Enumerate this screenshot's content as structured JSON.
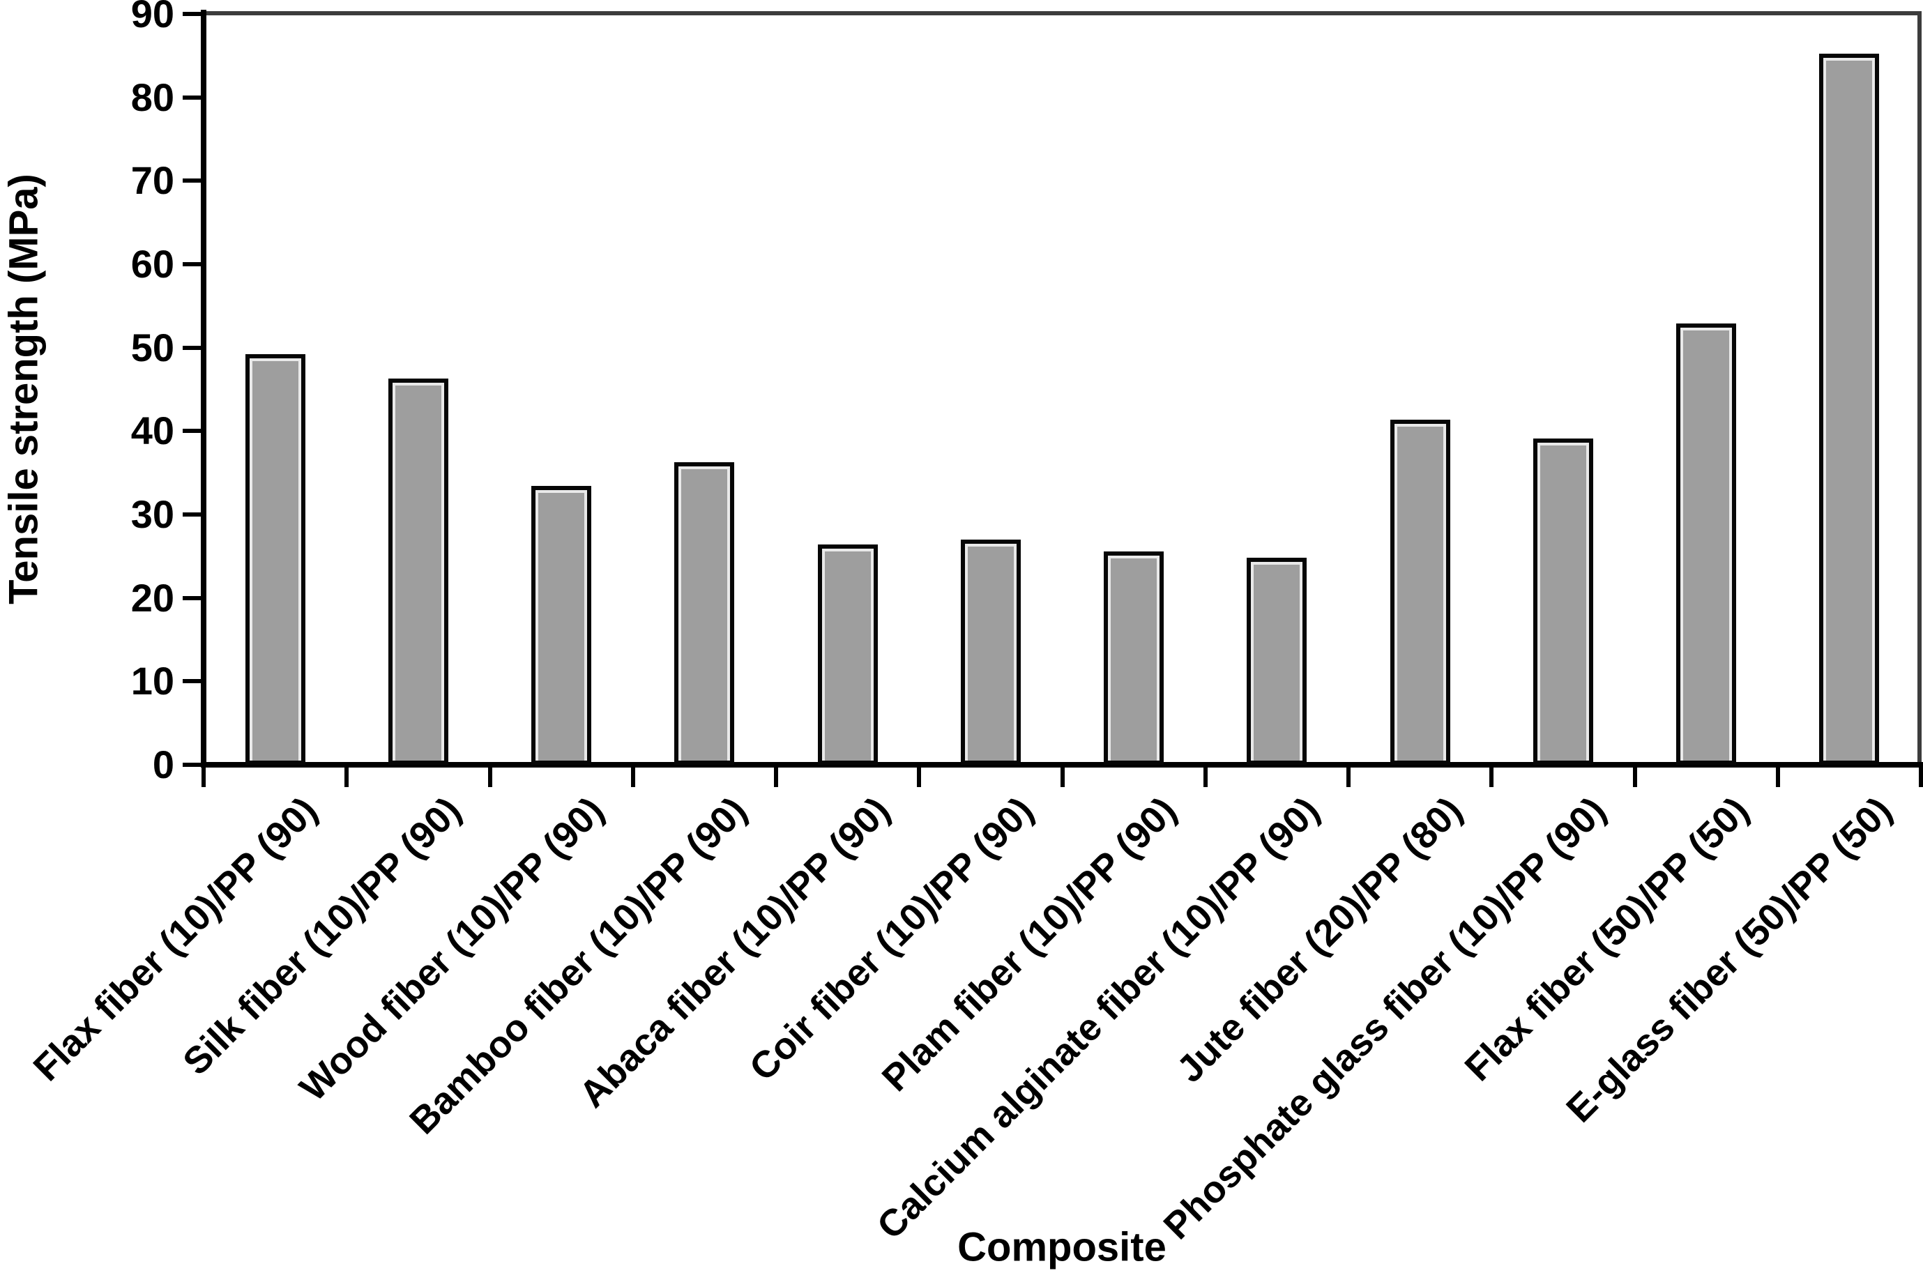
{
  "chart_data": {
    "type": "bar",
    "title": "",
    "xlabel": "Composite",
    "ylabel": "Tensile strength (MPa)",
    "ylim": [
      0,
      90
    ],
    "yticks": [
      0,
      10,
      20,
      30,
      40,
      50,
      60,
      70,
      80,
      90
    ],
    "grid": false,
    "legend": null,
    "categories": [
      "Flax fiber (10)/PP (90)",
      "Silk fiber (10)/PP (90)",
      "Wood fiber (10)/PP (90)",
      "Bamboo fiber (10)/PP (90)",
      "Abaca fiber (10)/PP (90)",
      "Coir fiber (10)/PP (90)",
      "Plam fiber (10)/PP (90)",
      "Calcium alginate fiber (10)/PP (90)",
      "Jute fiber (20)/PP (80)",
      "Phosphate glass fiber (10)/PP (90)",
      "Flax fiber (50)/PP (50)",
      "E-glass fiber (50)/PP (50)"
    ],
    "values": [
      49.2,
      46.3,
      33.4,
      36.3,
      26.4,
      27.0,
      25.6,
      24.8,
      41.4,
      39.1,
      52.9,
      85.2
    ],
    "colors": {
      "bar_fill": "#9e9e9e",
      "bar_border": "#060606",
      "bar_inner_highlight": "#e9e9e9",
      "axis_line": "#000000",
      "frame_line": "#3c3c3c",
      "background": "#ffffff",
      "text": "#000000"
    }
  }
}
